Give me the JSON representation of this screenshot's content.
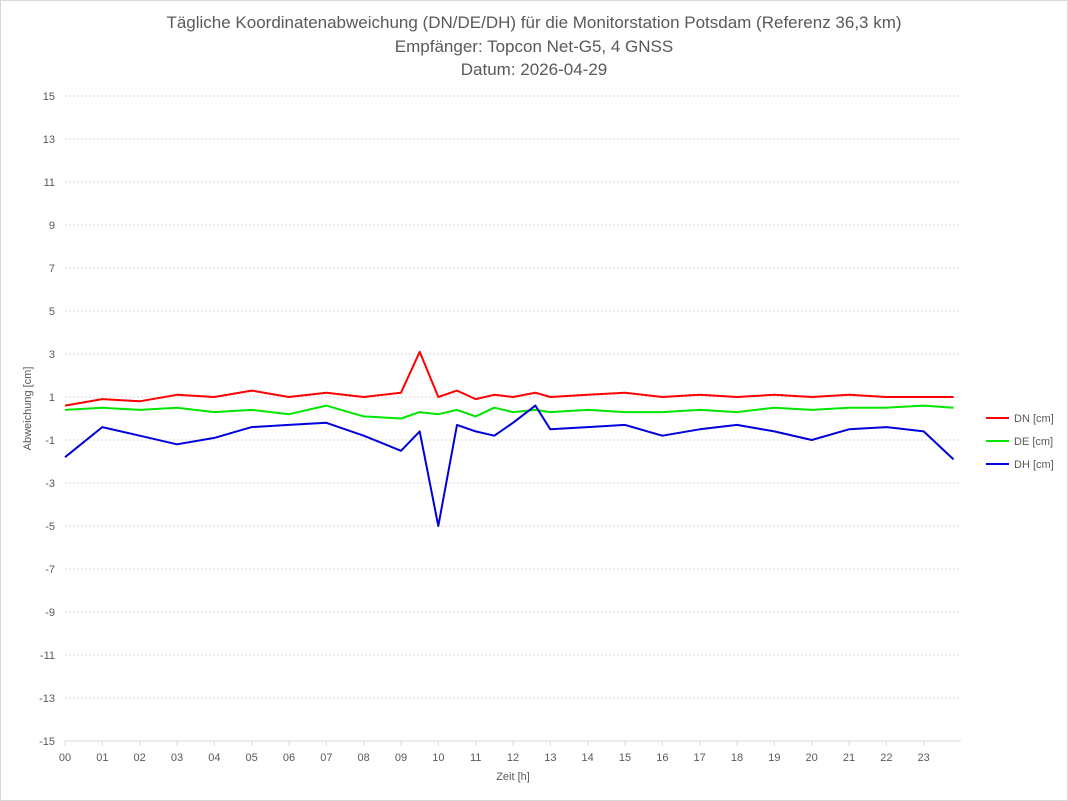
{
  "chart_data": {
    "type": "line",
    "title": "Tägliche Koordinatenabweichung (DN/DE/DH) für die Monitorstation Potsdam (Referenz 36,3 km)",
    "subtitle": "Empfänger: Topcon Net-G5, 4 GNSS",
    "date_line": "Datum: 2026-04-29",
    "xlabel": "Zeit [h]",
    "ylabel": "Abweichung [cm]",
    "xlim": [
      0,
      24
    ],
    "ylim": [
      -15,
      15
    ],
    "x_ticks": [
      "00",
      "01",
      "02",
      "03",
      "04",
      "05",
      "06",
      "07",
      "08",
      "09",
      "10",
      "11",
      "12",
      "13",
      "14",
      "15",
      "16",
      "17",
      "18",
      "19",
      "20",
      "21",
      "22",
      "23"
    ],
    "y_ticks": [
      "15",
      "13",
      "11",
      "9",
      "7",
      "5",
      "3",
      "1",
      "-1",
      "-3",
      "-5",
      "-7",
      "-9",
      "-11",
      "-13",
      "-15"
    ],
    "grid": "horizontal dotted",
    "legend_position": "right",
    "x": [
      0.0,
      1.0,
      2.0,
      3.0,
      4.0,
      5.0,
      6.0,
      7.0,
      8.0,
      9.0,
      9.5,
      10.0,
      10.5,
      11.0,
      11.5,
      12.0,
      12.6,
      13.0,
      14.0,
      15.0,
      16.0,
      17.0,
      18.0,
      19.0,
      20.0,
      21.0,
      22.0,
      23.0,
      23.8
    ],
    "series": [
      {
        "name": "DN [cm]",
        "color": "#ff0000",
        "values": [
          0.6,
          0.9,
          0.8,
          1.1,
          1.0,
          1.3,
          1.0,
          1.2,
          1.0,
          1.2,
          3.1,
          1.0,
          1.3,
          0.9,
          1.1,
          1.0,
          1.2,
          1.0,
          1.1,
          1.2,
          1.0,
          1.1,
          1.0,
          1.1,
          1.0,
          1.1,
          1.0,
          1.0,
          1.0
        ]
      },
      {
        "name": "DE [cm]",
        "color": "#00e600",
        "values": [
          0.4,
          0.5,
          0.4,
          0.5,
          0.3,
          0.4,
          0.2,
          0.6,
          0.1,
          0.0,
          0.3,
          0.2,
          0.4,
          0.1,
          0.5,
          0.3,
          0.4,
          0.3,
          0.4,
          0.3,
          0.3,
          0.4,
          0.3,
          0.5,
          0.4,
          0.5,
          0.5,
          0.6,
          0.5
        ]
      },
      {
        "name": "DH [cm]",
        "color": "#0000dd",
        "values": [
          -1.8,
          -0.4,
          -0.8,
          -1.2,
          -0.9,
          -0.4,
          -0.3,
          -0.2,
          -0.8,
          -1.5,
          -0.6,
          -5.0,
          -0.3,
          -0.6,
          -0.8,
          -0.2,
          0.6,
          -0.5,
          -0.4,
          -0.3,
          -0.8,
          -0.5,
          -0.3,
          -0.6,
          -1.0,
          -0.5,
          -0.4,
          -0.6,
          -1.9
        ]
      }
    ]
  }
}
